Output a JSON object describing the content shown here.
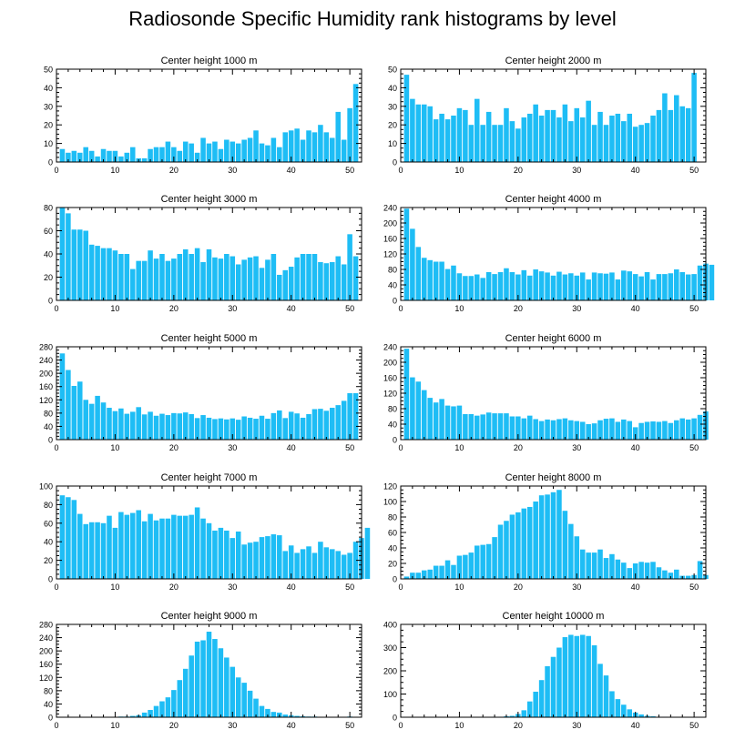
{
  "title": "Radiosonde Specific Humidity rank histograms by level",
  "bar_color": "#1ebdf5",
  "chart_data": [
    {
      "type": "bar",
      "title": "Center height 1000 m",
      "ylim": [
        0,
        50
      ],
      "yticks": [
        0,
        10,
        20,
        30,
        40,
        50
      ],
      "xlim": [
        0,
        52
      ],
      "xticks": [
        0,
        10,
        20,
        30,
        40,
        50
      ],
      "values": [
        7,
        5,
        6,
        5,
        8,
        6,
        3,
        7,
        6,
        6,
        3,
        5,
        8,
        2,
        2,
        7,
        8,
        8,
        11,
        8,
        6,
        11,
        10,
        5,
        13,
        10,
        11,
        7,
        12,
        11,
        10,
        12,
        13,
        17,
        10,
        9,
        13,
        8,
        16,
        17,
        18,
        12,
        17,
        16,
        20,
        16,
        13,
        27,
        12,
        29,
        42
      ]
    },
    {
      "type": "bar",
      "title": "Center height 2000 m",
      "ylim": [
        0,
        50
      ],
      "yticks": [
        0,
        10,
        20,
        30,
        40,
        50
      ],
      "xlim": [
        0,
        52
      ],
      "xticks": [
        0,
        10,
        20,
        30,
        40,
        50
      ],
      "values": [
        47,
        34,
        31,
        31,
        30,
        23,
        26,
        23,
        25,
        29,
        28,
        20,
        34,
        20,
        27,
        20,
        20,
        29,
        22,
        18,
        24,
        26,
        31,
        25,
        28,
        28,
        24,
        31,
        22,
        29,
        24,
        33,
        20,
        27,
        20,
        25,
        26,
        22,
        26,
        19,
        20,
        21,
        25,
        28,
        37,
        28,
        36,
        30,
        29,
        48
      ]
    },
    {
      "type": "bar",
      "title": "Center height 3000 m",
      "ylim": [
        0,
        80
      ],
      "yticks": [
        0,
        20,
        40,
        60,
        80
      ],
      "xlim": [
        0,
        52
      ],
      "xticks": [
        0,
        10,
        20,
        30,
        40,
        50
      ],
      "values": [
        80,
        75,
        61,
        61,
        60,
        48,
        47,
        45,
        45,
        43,
        40,
        40,
        27,
        34,
        34,
        43,
        36,
        40,
        34,
        36,
        40,
        44,
        40,
        45,
        33,
        44,
        37,
        36,
        40,
        38,
        31,
        35,
        37,
        38,
        28,
        35,
        40,
        22,
        26,
        29,
        37,
        40,
        40,
        40,
        33,
        32,
        33,
        38,
        31,
        57,
        38
      ]
    },
    {
      "type": "bar",
      "title": "Center height 4000 m",
      "ylim": [
        0,
        240
      ],
      "yticks": [
        0,
        40,
        80,
        120,
        160,
        200,
        240
      ],
      "xlim": [
        0,
        52
      ],
      "xticks": [
        0,
        10,
        20,
        30,
        40,
        50
      ],
      "values": [
        237,
        185,
        138,
        110,
        104,
        100,
        100,
        81,
        90,
        70,
        63,
        63,
        67,
        58,
        73,
        68,
        73,
        83,
        73,
        67,
        78,
        64,
        80,
        75,
        72,
        64,
        74,
        67,
        70,
        64,
        72,
        54,
        72,
        70,
        69,
        72,
        54,
        77,
        75,
        68,
        62,
        73,
        54,
        68,
        68,
        70,
        80,
        73,
        67,
        68,
        90,
        95,
        92
      ]
    },
    {
      "type": "bar",
      "title": "Center height 5000 m",
      "ylim": [
        0,
        280
      ],
      "yticks": [
        0,
        40,
        80,
        120,
        160,
        200,
        240,
        280
      ],
      "xlim": [
        0,
        52
      ],
      "xticks": [
        0,
        10,
        20,
        30,
        40,
        50
      ],
      "values": [
        260,
        210,
        162,
        175,
        120,
        108,
        132,
        112,
        96,
        86,
        94,
        78,
        84,
        98,
        76,
        84,
        72,
        78,
        74,
        80,
        79,
        82,
        77,
        65,
        74,
        66,
        62,
        64,
        61,
        64,
        60,
        70,
        66,
        63,
        72,
        63,
        80,
        88,
        65,
        84,
        79,
        66,
        77,
        92,
        93,
        87,
        96,
        104,
        117,
        140,
        140
      ]
    },
    {
      "type": "bar",
      "title": "Center height 6000 m",
      "ylim": [
        0,
        240
      ],
      "yticks": [
        0,
        40,
        80,
        120,
        160,
        200,
        240
      ],
      "xlim": [
        0,
        52
      ],
      "xticks": [
        0,
        10,
        20,
        30,
        40,
        50
      ],
      "values": [
        235,
        161,
        150,
        128,
        108,
        96,
        105,
        88,
        86,
        88,
        66,
        66,
        62,
        65,
        70,
        68,
        68,
        68,
        60,
        60,
        55,
        62,
        53,
        48,
        52,
        50,
        53,
        55,
        50,
        48,
        46,
        40,
        42,
        50,
        54,
        55,
        46,
        52,
        48,
        32,
        43,
        46,
        47,
        46,
        48,
        43,
        50,
        55,
        52,
        55,
        64,
        73
      ]
    },
    {
      "type": "bar",
      "title": "Center height 7000 m",
      "ylim": [
        0,
        100
      ],
      "yticks": [
        0,
        20,
        40,
        60,
        80,
        100
      ],
      "xlim": [
        0,
        52
      ],
      "xticks": [
        0,
        10,
        20,
        30,
        40,
        50
      ],
      "values": [
        90,
        88,
        85,
        70,
        59,
        61,
        61,
        60,
        68,
        55,
        72,
        69,
        71,
        74,
        62,
        70,
        63,
        65,
        65,
        69,
        68,
        68,
        69,
        77,
        65,
        60,
        52,
        55,
        52,
        44,
        51,
        37,
        39,
        40,
        45,
        46,
        48,
        47,
        30,
        36,
        28,
        32,
        35,
        28,
        40,
        34,
        32,
        30,
        26,
        28,
        40,
        44,
        55
      ]
    },
    {
      "type": "bar",
      "title": "Center height 8000 m",
      "ylim": [
        0,
        120
      ],
      "yticks": [
        0,
        20,
        40,
        60,
        80,
        100,
        120
      ],
      "xlim": [
        0,
        52
      ],
      "xticks": [
        0,
        10,
        20,
        30,
        40,
        50
      ],
      "values": [
        3,
        8,
        8,
        11,
        12,
        17,
        17,
        24,
        18,
        30,
        31,
        34,
        43,
        44,
        45,
        54,
        70,
        75,
        83,
        86,
        91,
        93,
        100,
        108,
        109,
        112,
        115,
        88,
        71,
        55,
        38,
        34,
        34,
        38,
        27,
        32,
        25,
        21,
        14,
        20,
        22,
        21,
        22,
        15,
        11,
        8,
        12,
        4,
        4,
        5,
        23,
        5
      ]
    },
    {
      "type": "bar",
      "title": "Center height 9000 m",
      "ylim": [
        0,
        280
      ],
      "yticks": [
        0,
        40,
        80,
        120,
        160,
        200,
        240,
        280
      ],
      "xlim": [
        0,
        52
      ],
      "xticks": [
        0,
        10,
        20,
        30,
        40,
        50
      ],
      "values": [
        0,
        0,
        0,
        0,
        0,
        0,
        0,
        0,
        0,
        0,
        2,
        2,
        4,
        6,
        14,
        22,
        34,
        48,
        60,
        82,
        112,
        146,
        186,
        228,
        232,
        258,
        236,
        208,
        180,
        152,
        120,
        104,
        80,
        56,
        34,
        25,
        16,
        14,
        8,
        6,
        4,
        3,
        2,
        2,
        1,
        1,
        1,
        0,
        1,
        2,
        0
      ]
    },
    {
      "type": "bar",
      "title": "Center height 10000 m",
      "ylim": [
        0,
        400
      ],
      "yticks": [
        0,
        100,
        200,
        300,
        400
      ],
      "xlim": [
        0,
        52
      ],
      "xticks": [
        0,
        10,
        20,
        30,
        40,
        50
      ],
      "values": [
        0,
        0,
        0,
        0,
        0,
        0,
        0,
        0,
        0,
        0,
        0,
        0,
        0,
        0,
        0,
        2,
        2,
        4,
        6,
        14,
        30,
        68,
        110,
        160,
        220,
        260,
        300,
        345,
        355,
        350,
        355,
        350,
        310,
        230,
        180,
        112,
        78,
        54,
        34,
        20,
        12,
        6,
        4,
        2,
        2,
        1,
        1,
        0,
        0,
        0,
        0
      ]
    }
  ]
}
